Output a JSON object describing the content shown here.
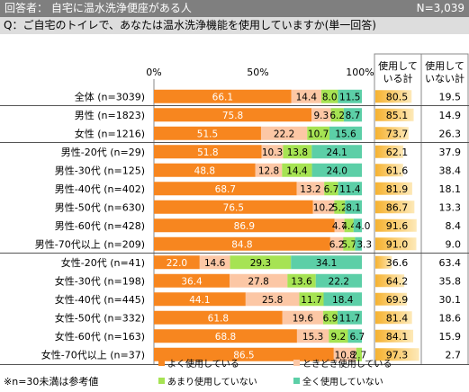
{
  "header": {
    "respondents": "回答者： 自宅に温水洗浄便座がある人",
    "n_total": "N=3,039"
  },
  "question": "Q：ご自宅のトイレで、あなたは温水洗浄機能を使用していますか(単一回答)",
  "columns": {
    "use_total": "使用している計",
    "not_use_total": "使用していない計"
  },
  "footnote": "※n=30未満は参考値",
  "colors": {
    "often": "#f7861f",
    "sometimes": "#fcc7a5",
    "rarely": "#a6e353",
    "never": "#5ccfa7",
    "total_bar": "#f7c04a"
  },
  "chart_data": {
    "type": "bar",
    "orientation": "horizontal",
    "stacked": true,
    "xlim": [
      0,
      100
    ],
    "x_ticks": [
      "0%",
      "50%",
      "100%"
    ],
    "categories": [
      "全体 (n=3039)",
      "男性 (n=1823)",
      "女性 (n=1216)",
      "男性-20代 (n=29)",
      "男性-30代 (n=125)",
      "男性-40代 (n=402)",
      "男性-50代 (n=630)",
      "男性-60代 (n=428)",
      "男性-70代以上 (n=209)",
      "女性-20代 (n=41)",
      "女性-30代 (n=198)",
      "女性-40代 (n=445)",
      "女性-50代 (n=332)",
      "女性-60代 (n=163)",
      "女性-70代以上 (n=37)"
    ],
    "series": [
      {
        "name": "よく使用している",
        "values": [
          66.1,
          75.8,
          51.5,
          51.8,
          48.8,
          68.7,
          76.5,
          86.9,
          84.8,
          22.0,
          36.4,
          44.1,
          61.8,
          68.8,
          86.5
        ]
      },
      {
        "name": "ときどき使用している",
        "values": [
          14.4,
          9.3,
          22.2,
          10.3,
          12.8,
          13.2,
          10.2,
          4.7,
          6.2,
          14.6,
          27.8,
          25.8,
          19.6,
          15.3,
          10.8
        ]
      },
      {
        "name": "あまり使用していない",
        "values": [
          8.0,
          6.2,
          10.7,
          13.8,
          14.4,
          6.7,
          5.2,
          4.4,
          5.7,
          29.3,
          13.6,
          11.7,
          6.9,
          9.2,
          2.7
        ]
      },
      {
        "name": "全く使用していない",
        "values": [
          11.5,
          8.7,
          15.6,
          24.1,
          24.0,
          11.4,
          8.1,
          4.0,
          3.3,
          34.1,
          22.2,
          18.4,
          11.7,
          6.7,
          0.0
        ]
      }
    ],
    "use_total": [
      80.5,
      85.1,
      73.7,
      62.1,
      61.6,
      81.9,
      86.7,
      91.6,
      91.0,
      36.6,
      64.2,
      69.9,
      81.4,
      84.1,
      97.3
    ],
    "not_use_total": [
      19.5,
      14.9,
      26.3,
      37.9,
      38.4,
      18.1,
      13.3,
      8.4,
      9.0,
      63.4,
      35.8,
      30.1,
      18.6,
      15.9,
      2.7
    ],
    "value_labels": [
      [
        "66.1",
        "14.4",
        "8.0",
        "11.5"
      ],
      [
        "75.8",
        "9.3",
        "6.2",
        "8.7"
      ],
      [
        "51.5",
        "22.2",
        "10.7",
        "15.6"
      ],
      [
        "51.8",
        "10.3",
        "13.8",
        "24.1"
      ],
      [
        "48.8",
        "12.8",
        "14.4",
        "24.0"
      ],
      [
        "68.7",
        "13.2",
        "6.7",
        "11.4"
      ],
      [
        "76.5",
        "10.2",
        "5.2",
        "8.1"
      ],
      [
        "86.9",
        "4.7",
        "4.4",
        "4.0"
      ],
      [
        "84.8",
        "6.2",
        "5.7",
        "3.3"
      ],
      [
        "22.0",
        "14.6",
        "29.3",
        "34.1"
      ],
      [
        "36.4",
        "27.8",
        "13.6",
        "22.2"
      ],
      [
        "44.1",
        "25.8",
        "11.7",
        "18.4"
      ],
      [
        "61.8",
        "19.6",
        "6.9",
        "11.7"
      ],
      [
        "68.8",
        "15.3",
        "9.2",
        "6.7"
      ],
      [
        "86.5",
        "10.8",
        "2.7",
        ""
      ]
    ]
  }
}
